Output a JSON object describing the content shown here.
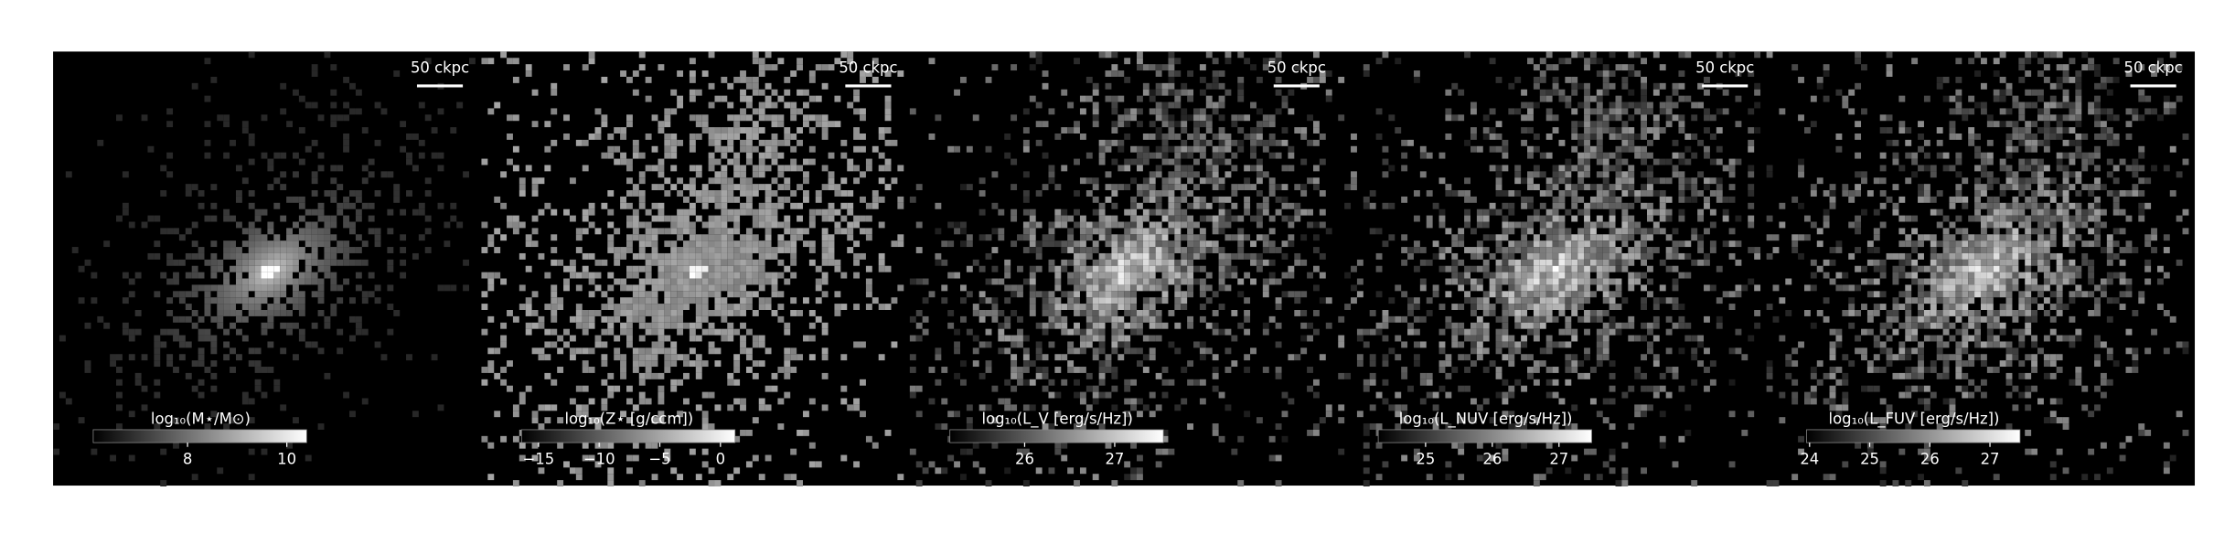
{
  "panels": [
    {
      "scalebar": "50 ckpc",
      "colorbar": {
        "label": "log₁₀(M⋆/M⊙)",
        "lim": [
          6.1,
          10.4
        ],
        "ticks": [
          8,
          10
        ]
      }
    },
    {
      "scalebar": "50 ckpc",
      "colorbar": {
        "label": "log₁₀(Z⋆ [g/ccm])",
        "lim": [
          -16.4,
          1.2
        ],
        "ticks": [
          {
            "value": -15,
            "label": "−15"
          },
          {
            "value": -10,
            "label": "−10"
          },
          {
            "value": -5,
            "label": "−5"
          },
          0
        ]
      }
    },
    {
      "scalebar": "50 ckpc",
      "colorbar": {
        "label": "log₁₀(L_V [erg/s/Hz])",
        "lim": [
          25.17,
          27.54
        ],
        "ticks": [
          26,
          27
        ]
      }
    },
    {
      "scalebar": "50 ckpc",
      "colorbar": {
        "label": "log₁₀(L_NUV [erg/s/Hz])",
        "lim": [
          24.29,
          27.49
        ],
        "ticks": [
          25,
          26,
          27
        ]
      }
    },
    {
      "scalebar": "50 ckpc",
      "colorbar": {
        "label": "log₁₀(L_FUV [erg/s/Hz])",
        "lim": [
          23.95,
          27.5
        ],
        "ticks": [
          24,
          25,
          26,
          27
        ]
      }
    }
  ]
}
